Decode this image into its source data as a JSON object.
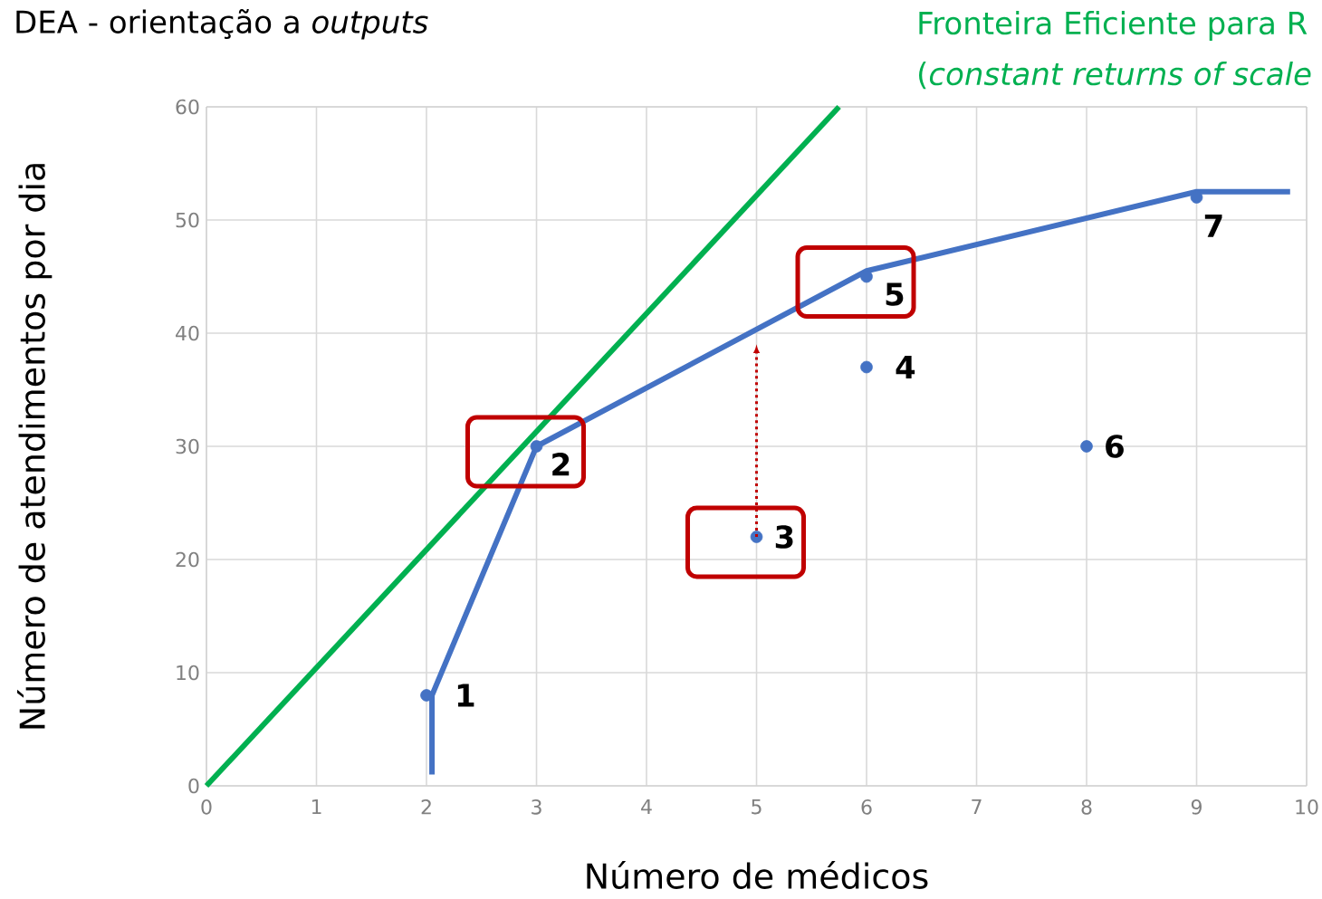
{
  "chart_data": {
    "type": "scatter",
    "title": "DEA - orientação a *outputs*",
    "xlabel": "Número de médicos",
    "ylabel": "Número de atendimentos por dia",
    "annotations": [
      "Fronteira Eficiente para R",
      "(*constant returns of scale*",
      {
        "text": "1",
        "x": 2,
        "y": 8
      },
      {
        "text": "2",
        "x": 3,
        "y": 30
      },
      {
        "text": "3",
        "x": 5,
        "y": 22
      },
      {
        "text": "4",
        "x": 6,
        "y": 37
      },
      {
        "text": "5",
        "x": 6,
        "y": 45
      },
      {
        "text": "6",
        "x": 8,
        "y": 30
      },
      {
        "text": "7",
        "x": 9,
        "y": 52
      }
    ],
    "series": [
      {
        "color": "#4472c4",
        "marker": "circle",
        "x": [
          2,
          3,
          5,
          6,
          6,
          8,
          9
        ],
        "values": [
          8,
          30,
          22,
          37,
          45,
          30,
          52
        ]
      },
      {
        "type": "line",
        "color": "#4472c4",
        "marker": "none",
        "x": [
          2.05,
          2.05,
          3,
          6,
          9,
          9.85
        ],
        "values": [
          1,
          8,
          30,
          45.5,
          52.5,
          52.5
        ]
      },
      {
        "type": "line",
        "color": "#00b050",
        "marker": "none",
        "x": [
          0,
          5.75
        ],
        "values": [
          0,
          60
        ]
      }
    ],
    "xlim": [
      0,
      10
    ],
    "ylim": [
      0,
      60
    ],
    "xticks": [
      0,
      1,
      2,
      3,
      4,
      5,
      6,
      7,
      8,
      9,
      10
    ],
    "yticks": [
      0,
      10,
      20,
      30,
      40,
      50,
      60
    ],
    "grid": true
  }
}
